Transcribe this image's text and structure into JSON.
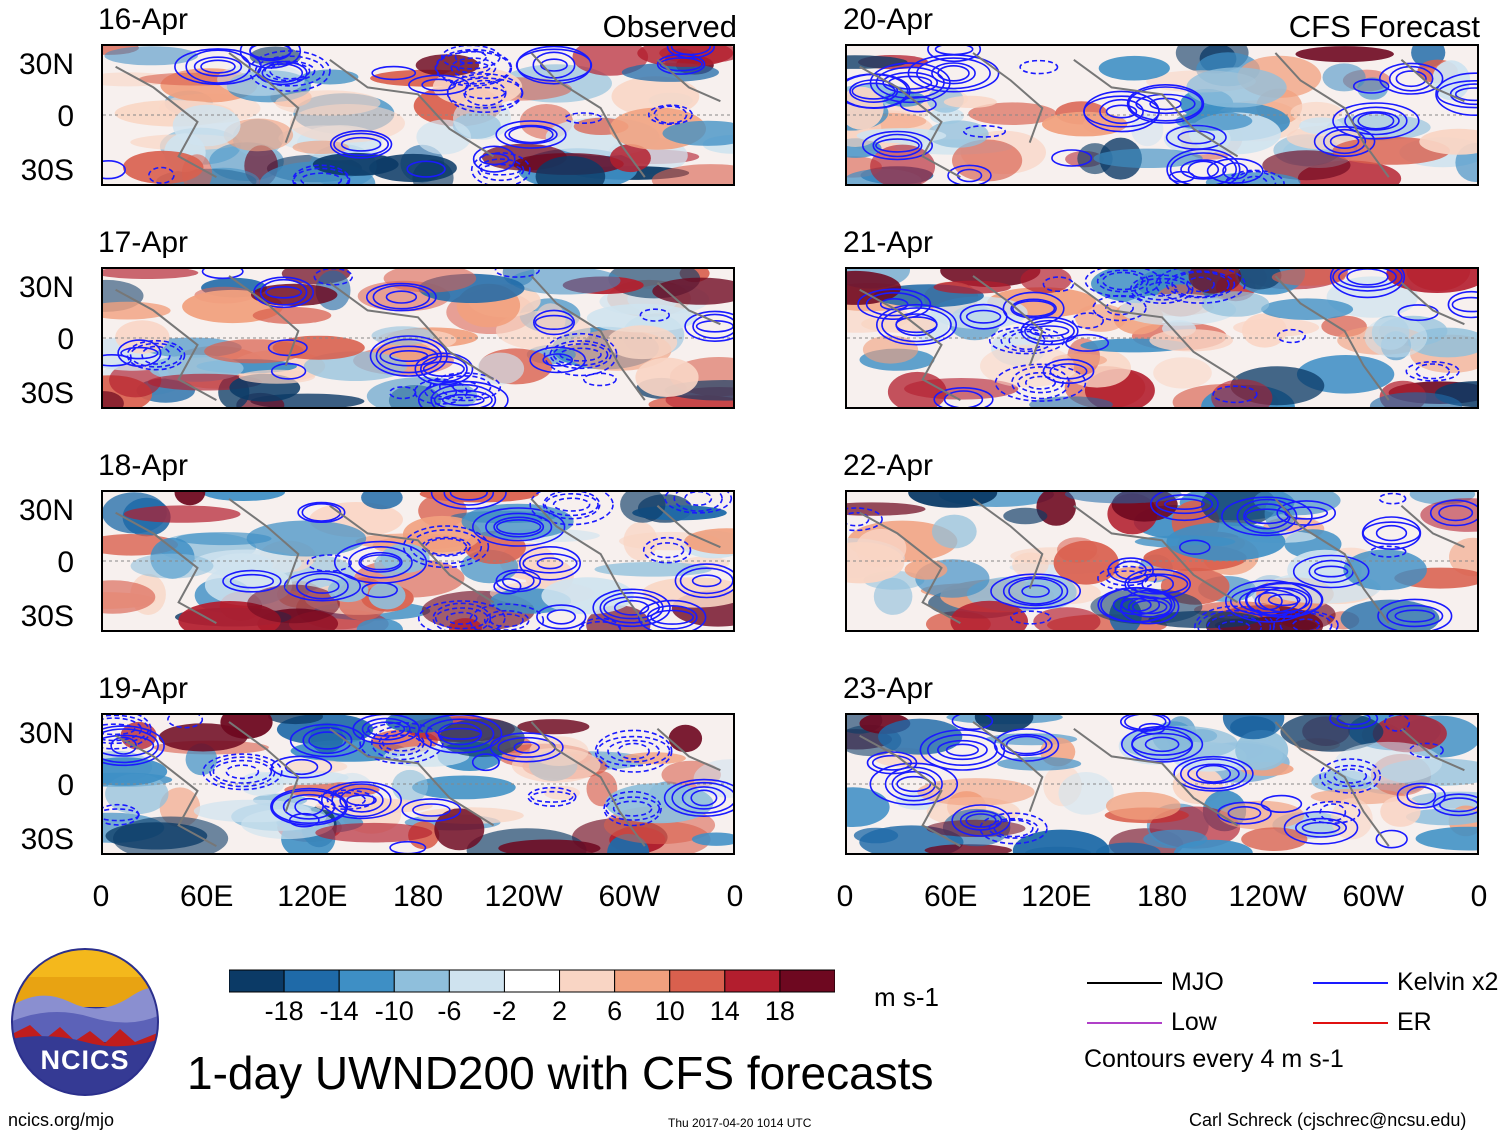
{
  "chart_data": {
    "type": "heatmap",
    "title": "1-day UWND200 with CFS forecasts",
    "variable": "UWND200",
    "units": "m s-1",
    "colorbar": {
      "ticks": [
        "-18",
        "-14",
        "-10",
        "-6",
        "-2",
        "2",
        "6",
        "10",
        "14",
        "18"
      ],
      "colors": [
        "#0b3a66",
        "#1f6aa8",
        "#3e8fc5",
        "#8fbfdc",
        "#cfe3ef",
        "#ffffff",
        "#f9d5c4",
        "#f1a07e",
        "#d9604e",
        "#b31e2e",
        "#6e0820"
      ]
    },
    "x_ticks": [
      "0",
      "60E",
      "120E",
      "180",
      "120W",
      "60W",
      "0"
    ],
    "y_ticks": [
      "30N",
      "0",
      "30S"
    ],
    "panels": [
      {
        "date": "16-Apr",
        "tag": "Observed"
      },
      {
        "date": "17-Apr",
        "tag": ""
      },
      {
        "date": "18-Apr",
        "tag": ""
      },
      {
        "date": "19-Apr",
        "tag": ""
      },
      {
        "date": "20-Apr",
        "tag": "CFS Forecast"
      },
      {
        "date": "21-Apr",
        "tag": ""
      },
      {
        "date": "22-Apr",
        "tag": ""
      },
      {
        "date": "23-Apr",
        "tag": ""
      }
    ],
    "legend": [
      {
        "label": "MJO",
        "color": "#000000"
      },
      {
        "label": "Kelvin x2",
        "color": "#1a1aff"
      },
      {
        "label": "Low",
        "color": "#b040c8"
      },
      {
        "label": "ER",
        "color": "#e01010"
      }
    ],
    "contour_note": "Contours every 4 m s-1"
  },
  "logo": {
    "text": "NCICS"
  },
  "footer": {
    "url": "ncics.org/mjo",
    "timestamp": "Thu 2017-04-20 1014 UTC",
    "credit": "Carl Schreck (cjschrec@ncsu.edu)"
  }
}
